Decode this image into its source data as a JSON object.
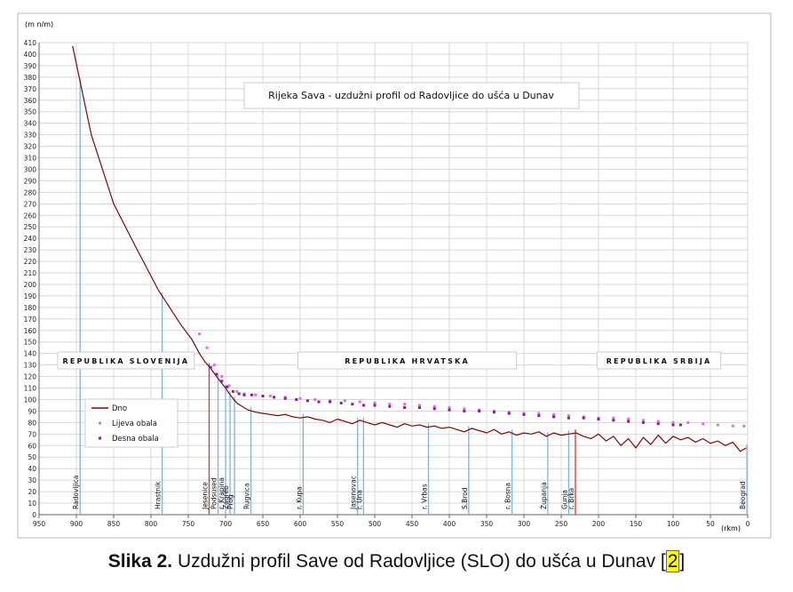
{
  "chart_data": {
    "type": "line",
    "title": "Rijeka Sava - uzdužni profil od Radovljice do ušća u Dunav",
    "y_label": "(m n/m)",
    "x_label": "(rkm)",
    "xlim": [
      950,
      0
    ],
    "ylim": [
      0,
      410
    ],
    "xticks": [
      950,
      900,
      850,
      800,
      750,
      700,
      650,
      600,
      550,
      500,
      450,
      400,
      350,
      300,
      250,
      200,
      150,
      100,
      50,
      0
    ],
    "yticks": [
      0,
      10,
      20,
      30,
      40,
      50,
      60,
      70,
      80,
      90,
      100,
      110,
      120,
      130,
      140,
      150,
      160,
      170,
      180,
      190,
      200,
      210,
      220,
      230,
      240,
      250,
      260,
      270,
      280,
      290,
      300,
      310,
      320,
      330,
      340,
      350,
      360,
      370,
      380,
      390,
      400,
      410
    ],
    "grid": true,
    "series": [
      {
        "name": "Dno",
        "style": "line",
        "color": "#7a0a0a",
        "x": [
          905,
          880,
          850,
          820,
          790,
          760,
          745,
          735,
          728,
          720,
          712,
          705,
          700,
          695,
          690,
          685,
          680,
          675,
          670,
          660,
          650,
          640,
          630,
          620,
          610,
          600,
          590,
          580,
          570,
          560,
          550,
          540,
          530,
          520,
          510,
          500,
          490,
          480,
          470,
          460,
          450,
          440,
          430,
          420,
          410,
          400,
          390,
          380,
          370,
          360,
          350,
          340,
          330,
          320,
          310,
          300,
          290,
          280,
          270,
          260,
          250,
          240,
          230,
          220,
          210,
          200,
          190,
          180,
          170,
          160,
          150,
          140,
          130,
          120,
          110,
          100,
          90,
          80,
          70,
          60,
          50,
          40,
          30,
          20,
          10,
          2
        ],
        "values": [
          407,
          330,
          270,
          232,
          195,
          165,
          152,
          140,
          133,
          127,
          120,
          114,
          110,
          105,
          101,
          97,
          95,
          93,
          91,
          89,
          88,
          87,
          86,
          87,
          85,
          84,
          85,
          83,
          82,
          80,
          83,
          81,
          79,
          82,
          80,
          78,
          80,
          78,
          76,
          79,
          77,
          78,
          76,
          77,
          75,
          76,
          74,
          72,
          75,
          73,
          71,
          74,
          70,
          72,
          69,
          71,
          70,
          72,
          68,
          71,
          69,
          70,
          71,
          68,
          66,
          70,
          64,
          68,
          60,
          66,
          58,
          67,
          61,
          69,
          62,
          68,
          65,
          67,
          63,
          66,
          62,
          64,
          60,
          63,
          55,
          58
        ]
      },
      {
        "name": "Lijeva obala",
        "style": "points",
        "color": "#e86ee0",
        "x": [
          735,
          725,
          715,
          705,
          695,
          685,
          675,
          660,
          640,
          620,
          600,
          580,
          560,
          540,
          520,
          500,
          480,
          460,
          440,
          420,
          400,
          380,
          360,
          340,
          320,
          300,
          280,
          260,
          240,
          220,
          200,
          180,
          160,
          140,
          120,
          100,
          80,
          60,
          40,
          20,
          5
        ],
        "values": [
          157,
          145,
          130,
          120,
          112,
          107,
          105,
          104,
          103,
          102,
          101,
          100,
          99,
          99,
          98,
          97,
          96,
          96,
          95,
          94,
          93,
          92,
          91,
          90,
          89,
          88,
          88,
          87,
          86,
          85,
          84,
          84,
          83,
          82,
          81,
          80,
          80,
          79,
          78,
          77,
          77
        ]
      },
      {
        "name": "Desna obala",
        "style": "points",
        "color": "#8a1a9a",
        "x": [
          720,
          712,
          705,
          698,
          690,
          682,
          675,
          665,
          650,
          635,
          620,
          605,
          590,
          575,
          560,
          545,
          530,
          515,
          500,
          480,
          460,
          440,
          420,
          400,
          380,
          360,
          340,
          320,
          300,
          280,
          260,
          240,
          220,
          200,
          180,
          160,
          140,
          120,
          100,
          90
        ],
        "values": [
          128,
          122,
          116,
          111,
          107,
          105,
          104,
          104,
          103,
          102,
          101,
          100,
          99,
          98,
          98,
          97,
          96,
          95,
          95,
          94,
          93,
          93,
          92,
          91,
          90,
          90,
          89,
          88,
          87,
          86,
          85,
          84,
          84,
          83,
          82,
          81,
          80,
          79,
          78,
          78
        ]
      }
    ],
    "stations": [
      {
        "name": "Radovljica",
        "rkm": 895,
        "color": "#7fb2e0"
      },
      {
        "name": "Hrastnik",
        "rkm": 785,
        "color": "#7fb2e0"
      },
      {
        "name": "Jesenice",
        "rkm": 722,
        "color": "#e03030"
      },
      {
        "name": "Podsused",
        "rkm": 710,
        "color": "#7fb2e0"
      },
      {
        "name": "r. Krapina",
        "rkm": 700,
        "color": "#7fb2e0"
      },
      {
        "name": "Zagreb",
        "rkm": 694,
        "color": "#7fb2e0"
      },
      {
        "name": "Prog",
        "rkm": 688,
        "color": "#7fb2e0"
      },
      {
        "name": "Rugvica",
        "rkm": 666,
        "color": "#7fb2e0"
      },
      {
        "name": "r. Kupa",
        "rkm": 596,
        "color": "#7fb2e0"
      },
      {
        "name": "Jasenovac",
        "rkm": 523,
        "color": "#7fb2e0"
      },
      {
        "name": "r. Una",
        "rkm": 515,
        "color": "#7fb2e0"
      },
      {
        "name": "r. Vrbas",
        "rkm": 428,
        "color": "#7fb2e0"
      },
      {
        "name": "S.Brod",
        "rkm": 374,
        "color": "#7fb2e0"
      },
      {
        "name": "r. Bosna",
        "rkm": 316,
        "color": "#7fb2e0"
      },
      {
        "name": "Županja",
        "rkm": 268,
        "color": "#7fb2e0"
      },
      {
        "name": "Gunja",
        "rkm": 240,
        "color": "#7fb2e0"
      },
      {
        "name": "r. Brka",
        "rkm": 231,
        "color": "#e03030"
      },
      {
        "name": "Beograd",
        "rkm": 1,
        "color": "#7fb2e0"
      }
    ],
    "regions": [
      {
        "name": "REPUBLIKA SLOVENIJA",
        "from": 925,
        "to": 742
      },
      {
        "name": "REPUBLIKA HRVATSKA",
        "from": 603,
        "to": 310
      },
      {
        "name": "REPUBLIKA SRBIJA",
        "from": 202,
        "to": 36
      }
    ]
  },
  "caption": {
    "label": "Slika 2.",
    "text": " Uzdužni profil Save od Radovljice (SLO) do ušća u Dunav [",
    "ref": "2",
    "close": "]"
  }
}
